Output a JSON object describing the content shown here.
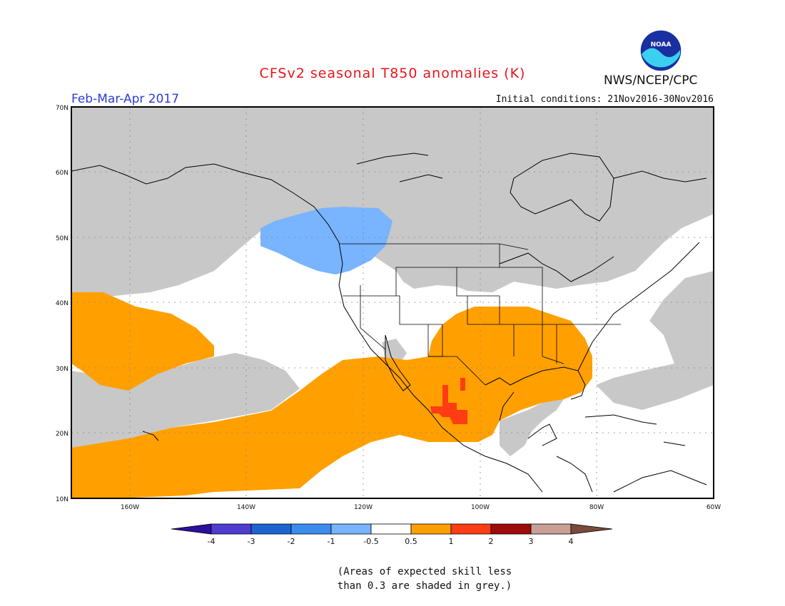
{
  "header": {
    "title": "CFSv2 seasonal T850 anomalies (K)",
    "period": "Feb-Mar-Apr 2017",
    "initial_conditions": "Initial conditions: 21Nov2016-30Nov2016",
    "agency": "NWS/NCEP/CPC",
    "logo_text": "NOAA"
  },
  "map": {
    "lat_labels": [
      "70N",
      "60N",
      "50N",
      "40N",
      "30N",
      "20N",
      "10N"
    ],
    "lon_labels": [
      "160W",
      "140W",
      "120W",
      "100W",
      "80W",
      "60W"
    ],
    "extent": {
      "lon": [
        -170,
        -60
      ],
      "lat": [
        10,
        70
      ]
    },
    "colors": {
      "grey_low_skill": "#c8c8c8",
      "orange": "#ffa000",
      "red_orange": "#ff3c14",
      "light_blue": "#78b4ff",
      "coast": "#000000"
    }
  },
  "colorbar": {
    "labels": [
      "-4",
      "-3",
      "-2",
      "-1",
      "-0.5",
      "0.5",
      "1",
      "2",
      "3",
      "4"
    ],
    "colors": [
      "#2c0f9e",
      "#4f3cd1",
      "#1c64d2",
      "#3c8cf0",
      "#78b4ff",
      "#ffffff",
      "#ffa000",
      "#ff3c14",
      "#a00a0a",
      "#c8a096",
      "#7a4a3a"
    ]
  },
  "footnote": {
    "line1": "(Areas of expected skill less",
    "line2": "than 0.3 are shaded in grey.)"
  }
}
